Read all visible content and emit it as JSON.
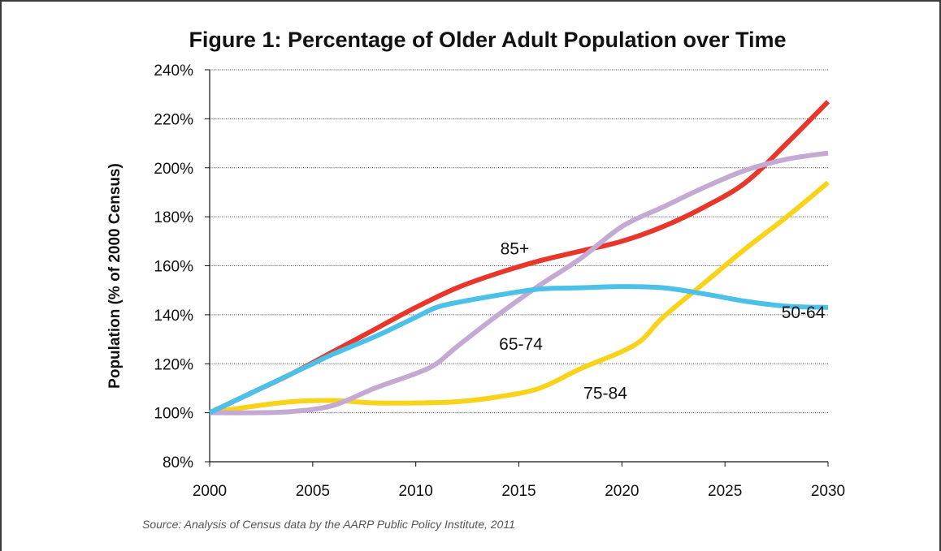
{
  "chart_data": {
    "type": "line",
    "title": "Figure 1: Percentage of Older Adult Population over Time",
    "ylabel": "Population (% of 2000 Census)",
    "xlabel": "",
    "source": "Source: Analysis of Census data by the AARP Public Policy Institute, 2011",
    "ylim": [
      80,
      240
    ],
    "xlim": [
      2000,
      2030
    ],
    "y_ticks": [
      {
        "value": 80,
        "label": "80%"
      },
      {
        "value": 100,
        "label": "100%"
      },
      {
        "value": 120,
        "label": "120%"
      },
      {
        "value": 140,
        "label": "140%"
      },
      {
        "value": 160,
        "label": "160%"
      },
      {
        "value": 180,
        "label": "180%"
      },
      {
        "value": 200,
        "label": "200%"
      },
      {
        "value": 220,
        "label": "220%"
      },
      {
        "value": 240,
        "label": "240%"
      }
    ],
    "x_ticks": [
      {
        "value": 2000,
        "label": "2000"
      },
      {
        "value": 2005,
        "label": "2005"
      },
      {
        "value": 2010,
        "label": "2010"
      },
      {
        "value": 2015,
        "label": "2015"
      },
      {
        "value": 2020,
        "label": "2020"
      },
      {
        "value": 2025,
        "label": "2025"
      },
      {
        "value": 2030,
        "label": "2030"
      }
    ],
    "grid": "horizontal",
    "series": [
      {
        "name": "85+",
        "color": "#e8372a",
        "label_at": [
          2014.8,
          167
        ],
        "x": [
          2000,
          2002,
          2004,
          2006,
          2008,
          2010,
          2012,
          2014,
          2016,
          2018,
          2020,
          2022,
          2024,
          2026,
          2028,
          2030
        ],
        "y": [
          100,
          108,
          116,
          125,
          134,
          143,
          151,
          157,
          162,
          166,
          170,
          176,
          184,
          194,
          210,
          227
        ]
      },
      {
        "name": "50-64",
        "color": "#4bc0e8",
        "label_at": [
          2028.8,
          141
        ],
        "x": [
          2000,
          2002,
          2004,
          2005,
          2006,
          2008,
          2010,
          2011,
          2012,
          2014,
          2016,
          2018,
          2020,
          2022,
          2024,
          2026,
          2028,
          2030
        ],
        "y": [
          100,
          108,
          116,
          120,
          124,
          131,
          139,
          143,
          145,
          148,
          150.5,
          151,
          151.5,
          151,
          148.5,
          145.5,
          143.5,
          143
        ]
      },
      {
        "name": "65-74",
        "color": "#c4a9d3",
        "label_at": [
          2015.1,
          128
        ],
        "x": [
          2000,
          2002,
          2004,
          2006,
          2008,
          2010,
          2011,
          2012,
          2014,
          2016,
          2018,
          2020,
          2022,
          2024,
          2026,
          2028,
          2030
        ],
        "y": [
          100,
          100,
          100.5,
          103,
          110,
          116,
          120,
          127,
          140,
          152,
          163,
          176,
          184,
          192,
          199,
          203.5,
          206
        ]
      },
      {
        "name": "75-84",
        "color": "#f9d21a",
        "label_at": [
          2019.2,
          108
        ],
        "x": [
          2000,
          2002,
          2004,
          2006,
          2008,
          2010,
          2012,
          2014,
          2016,
          2018,
          2020,
          2021,
          2022,
          2024,
          2026,
          2028,
          2030
        ],
        "y": [
          100,
          102.5,
          104.5,
          105,
          104,
          104,
          104.5,
          106.5,
          110,
          118,
          125,
          130,
          139,
          153,
          167,
          180,
          194
        ]
      }
    ]
  }
}
